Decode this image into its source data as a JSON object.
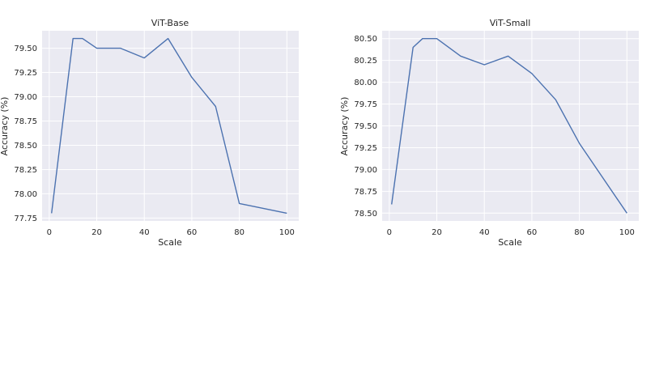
{
  "chart_data": [
    {
      "type": "line",
      "title": "ViT-Base",
      "xlabel": "Scale",
      "ylabel": "Accuracy (%)",
      "x": [
        1,
        10,
        14,
        20,
        30,
        40,
        50,
        60,
        70,
        80,
        100
      ],
      "series": [
        {
          "values": [
            77.8,
            79.6,
            79.6,
            79.5,
            79.5,
            79.4,
            79.6,
            79.2,
            78.9,
            77.9,
            77.8
          ]
        }
      ],
      "xticks": [
        0,
        20,
        40,
        60,
        80,
        100
      ],
      "yticks": [
        77.75,
        78.0,
        78.25,
        78.5,
        78.75,
        79.0,
        79.25,
        79.5
      ],
      "xlim": [
        -3,
        105
      ],
      "ylim": [
        77.72,
        79.68
      ],
      "line_color": "#4c72b0",
      "background": "#eaeaf2",
      "grid": true
    },
    {
      "type": "line",
      "title": "ViT-Small",
      "xlabel": "Scale",
      "ylabel": "Accuracy (%)",
      "x": [
        1,
        10,
        14,
        20,
        30,
        40,
        50,
        60,
        70,
        80,
        100
      ],
      "series": [
        {
          "values": [
            78.6,
            80.4,
            80.5,
            80.5,
            80.3,
            80.2,
            80.3,
            80.1,
            79.8,
            79.3,
            78.5
          ]
        }
      ],
      "xticks": [
        0,
        20,
        40,
        60,
        80,
        100
      ],
      "yticks": [
        78.5,
        78.75,
        79.0,
        79.25,
        79.5,
        79.75,
        80.0,
        80.25,
        80.5
      ],
      "xlim": [
        -3,
        105
      ],
      "ylim": [
        78.41,
        80.59
      ],
      "line_color": "#4c72b0",
      "background": "#eaeaf2",
      "grid": true
    }
  ]
}
